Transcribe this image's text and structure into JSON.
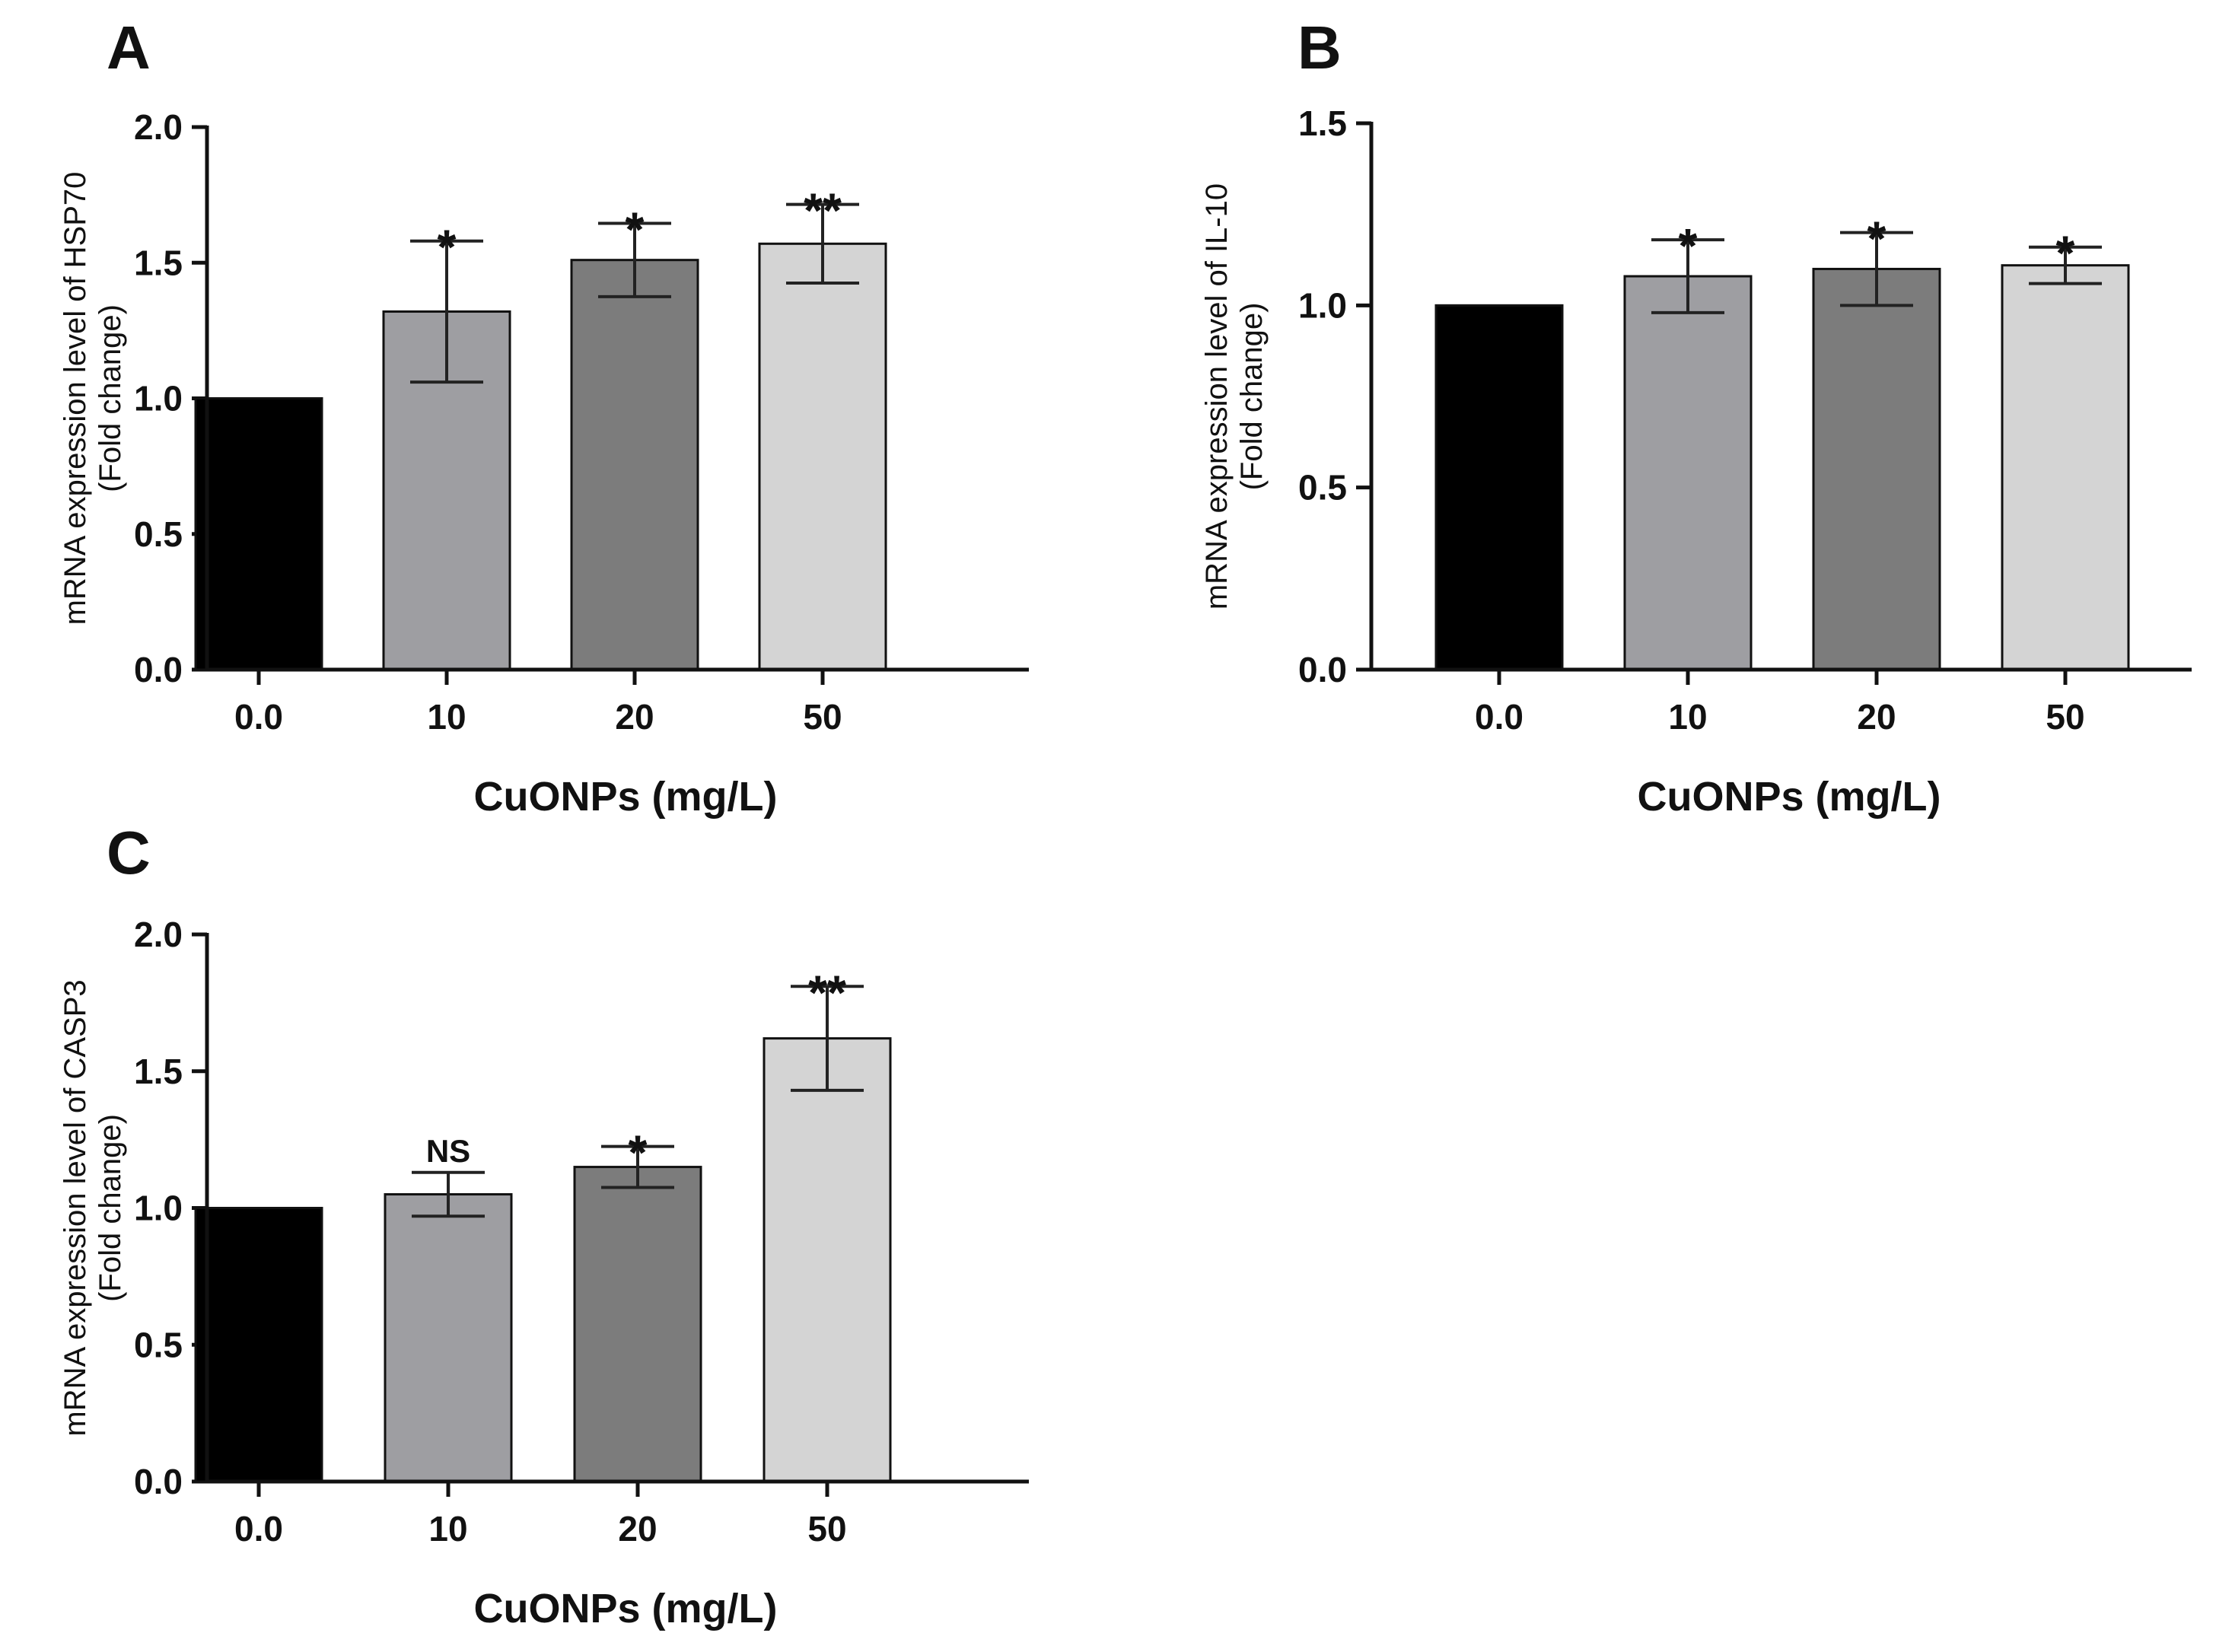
{
  "chart_data": [
    {
      "panel": "A",
      "type": "bar",
      "categories": [
        "0.0",
        "10",
        "20",
        "50"
      ],
      "values": [
        1.0,
        1.32,
        1.51,
        1.57
      ],
      "errors": [
        0.0,
        0.26,
        0.135,
        0.145
      ],
      "significance": [
        "",
        "*",
        "*",
        "**"
      ],
      "colors": [
        "#000000",
        "#9e9ea2",
        "#7c7c7c",
        "#d4d4d4"
      ],
      "xlabel": "CuONPs (mg/L)",
      "ylabel": [
        "mRNA expression level of HSP70",
        "(Fold change)"
      ],
      "ylim": [
        0,
        2.0
      ],
      "yticks": [
        "0.0",
        "0.5",
        "1.0",
        "1.5",
        "2.0"
      ]
    },
    {
      "panel": "B",
      "type": "bar",
      "categories": [
        "0.0",
        "10",
        "20",
        "50"
      ],
      "values": [
        1.0,
        1.08,
        1.1,
        1.11
      ],
      "errors": [
        0.0,
        0.1,
        0.1,
        0.05
      ],
      "significance": [
        "",
        "*",
        "*",
        "*"
      ],
      "colors": [
        "#000000",
        "#9e9ea2",
        "#7c7c7c",
        "#d4d4d4"
      ],
      "xlabel": "CuONPs (mg/L)",
      "ylabel": [
        "mRNA expression level of IL-10",
        "(Fold change)"
      ],
      "ylim": [
        0,
        1.5
      ],
      "yticks": [
        "0.0",
        "0.5",
        "1.0",
        "1.5"
      ]
    },
    {
      "panel": "C",
      "type": "bar",
      "categories": [
        "0.0",
        "10",
        "20",
        "50"
      ],
      "values": [
        1.0,
        1.05,
        1.15,
        1.62
      ],
      "errors": [
        0.0,
        0.08,
        0.075,
        0.19
      ],
      "significance": [
        "",
        "NS",
        "*",
        "**"
      ],
      "colors": [
        "#000000",
        "#9e9ea2",
        "#7c7c7c",
        "#d4d4d4"
      ],
      "xlabel": "CuONPs (mg/L)",
      "ylabel": [
        "mRNA expression level of CASP3",
        "(Fold change)"
      ],
      "ylim": [
        0,
        2.0
      ],
      "yticks": [
        "0.0",
        "0.5",
        "1.0",
        "1.5",
        "2.0"
      ]
    }
  ]
}
